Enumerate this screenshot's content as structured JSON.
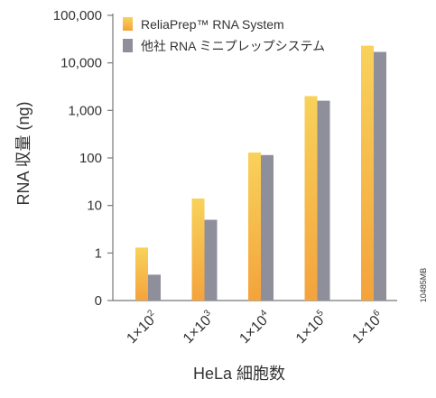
{
  "chart_data": {
    "type": "bar",
    "title": "",
    "xlabel": "HeLa 細胞数",
    "ylabel": "RNA 収量 (ng)",
    "y_scale": "log",
    "ylim": [
      0.1,
      100000
    ],
    "y_ticks": [
      {
        "value": 0.1,
        "label": "0"
      },
      {
        "value": 1,
        "label": "1"
      },
      {
        "value": 10,
        "label": "10"
      },
      {
        "value": 100,
        "label": "100"
      },
      {
        "value": 1000,
        "label": "1,000"
      },
      {
        "value": 10000,
        "label": "10,000"
      },
      {
        "value": 100000,
        "label": "100,000"
      }
    ],
    "categories": [
      {
        "base": "1×10",
        "exp": "2"
      },
      {
        "base": "1×10",
        "exp": "3"
      },
      {
        "base": "1×10",
        "exp": "4"
      },
      {
        "base": "1×10",
        "exp": "5"
      },
      {
        "base": "1×10",
        "exp": "6"
      }
    ],
    "series": [
      {
        "name": "ReliaPrep™ RNA System",
        "values": [
          1.3,
          14,
          130,
          2000,
          23000
        ],
        "color_top": "#f8d25a",
        "color_bottom": "#f4a33c"
      },
      {
        "name": "他社 RNA ミニプレップシステム",
        "values": [
          0.35,
          5,
          115,
          1600,
          17000
        ],
        "color_top": "#8f8f9c",
        "color_bottom": "#8f8f9c"
      }
    ],
    "grid": false,
    "legend_position": "top-left",
    "figure_code": "10485MB"
  }
}
